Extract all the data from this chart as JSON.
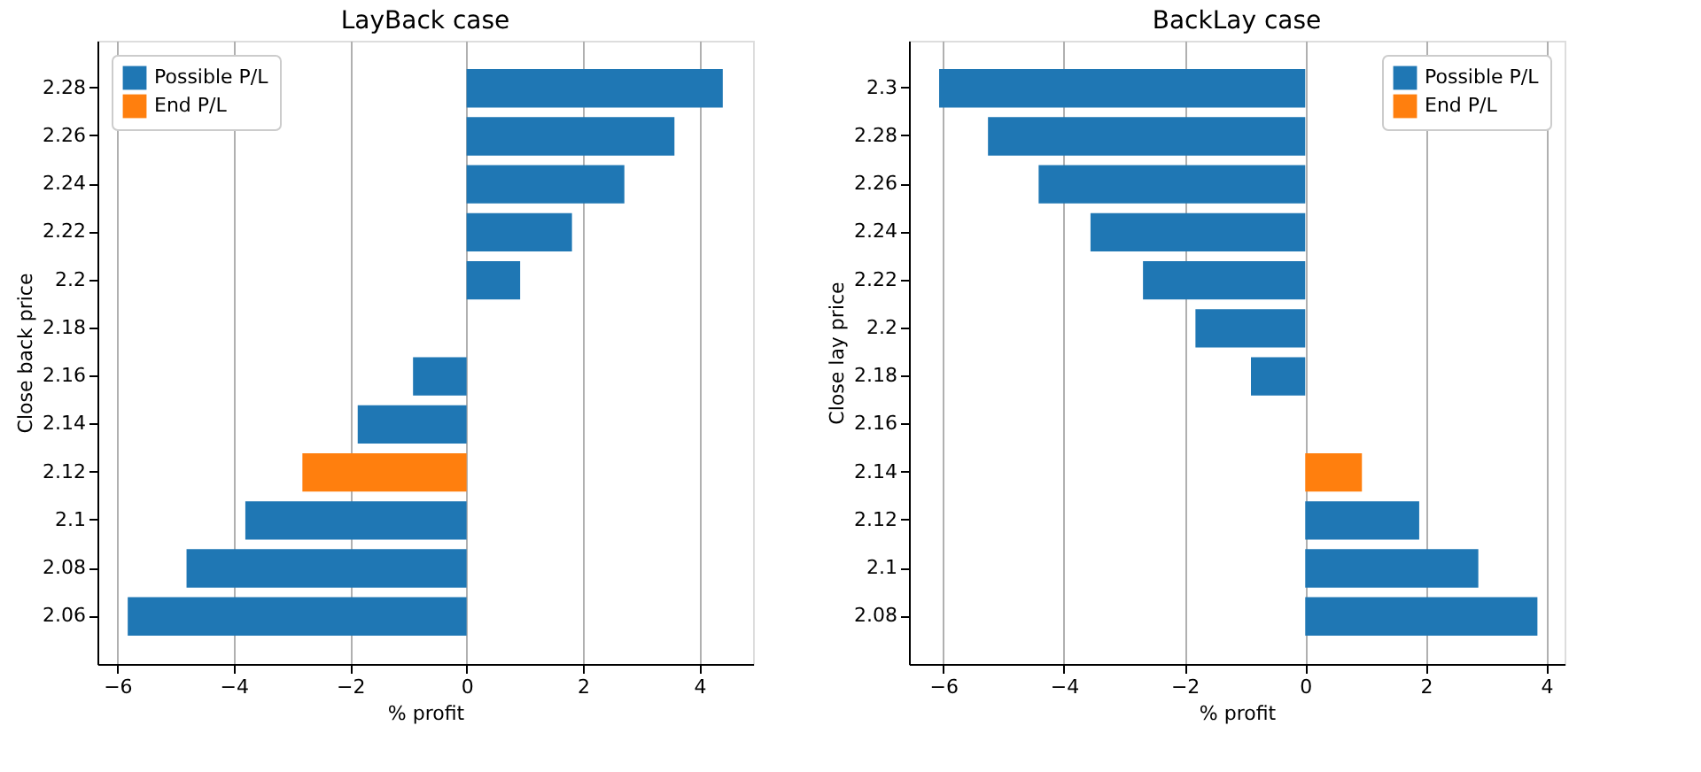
{
  "chart_data": [
    {
      "type": "bar",
      "orientation": "horizontal",
      "title": "LayBack case",
      "xlabel": "% profit",
      "ylabel": "Close back price",
      "categories": [
        "2.28",
        "2.26",
        "2.24",
        "2.22",
        "2.2",
        "2.18",
        "2.16",
        "2.14",
        "2.12",
        "2.1",
        "2.08",
        "2.06"
      ],
      "series": [
        {
          "name": "Possible P/L",
          "color": "#1f77b4",
          "values": [
            4.4,
            3.57,
            2.71,
            1.81,
            0.92,
            null,
            -0.92,
            -1.87,
            null,
            -3.8,
            -4.81,
            -5.82
          ]
        },
        {
          "name": "End P/L",
          "color": "#ff7f0e",
          "values": [
            null,
            null,
            null,
            null,
            null,
            null,
            null,
            null,
            -2.82,
            null,
            null,
            null
          ]
        }
      ],
      "xlim": [
        -6.34,
        4.92
      ],
      "xticks": [
        -6,
        -4,
        -2,
        0,
        2,
        4
      ],
      "grid": "x",
      "legend": "top left"
    },
    {
      "type": "bar",
      "orientation": "horizontal",
      "title": "BackLay case",
      "xlabel": "% profit",
      "ylabel": "Close lay price",
      "categories": [
        "2.3",
        "2.28",
        "2.26",
        "2.24",
        "2.22",
        "2.2",
        "2.18",
        "2.16",
        "2.14",
        "2.12",
        "2.1",
        "2.08"
      ],
      "series": [
        {
          "name": "Possible P/L",
          "color": "#1f77b4",
          "values": [
            -6.07,
            -5.26,
            -4.42,
            -3.56,
            -2.69,
            -1.82,
            -0.9,
            null,
            null,
            1.89,
            2.87,
            3.85
          ]
        },
        {
          "name": "End P/L",
          "color": "#ff7f0e",
          "values": [
            null,
            null,
            null,
            null,
            null,
            null,
            null,
            null,
            0.94,
            null,
            null,
            null
          ]
        }
      ],
      "xlim": [
        -6.57,
        4.3
      ],
      "xticks": [
        -6,
        -4,
        -2,
        0,
        2,
        4
      ],
      "grid": "x",
      "legend": "top right"
    }
  ]
}
